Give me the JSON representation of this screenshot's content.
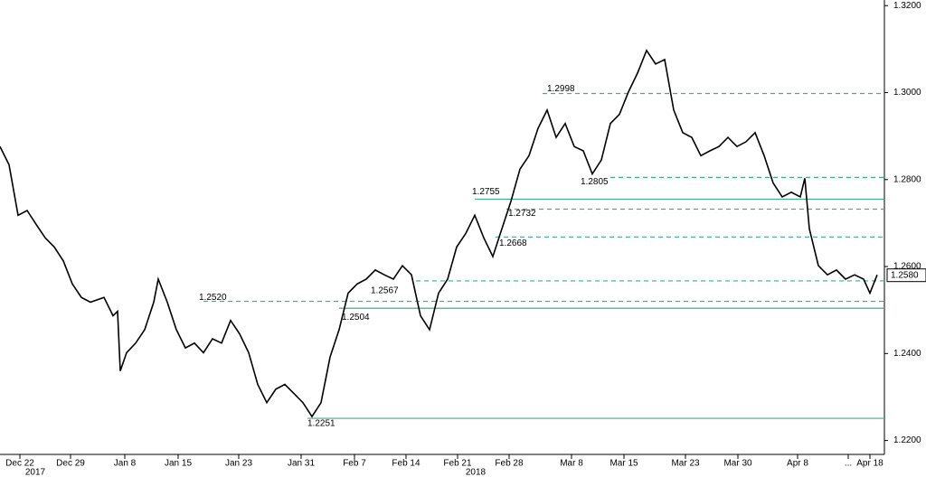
{
  "chart_data": {
    "type": "line",
    "color": "#000000",
    "level_color": "#3fae8c",
    "xlim": [
      0,
      97.5
    ],
    "ylim": [
      1.2168,
      1.3213
    ],
    "yticks": [
      {
        "value": 1.22,
        "label": "1.2200"
      },
      {
        "value": 1.24,
        "label": "1.2400"
      },
      {
        "value": 1.26,
        "label": "1.2600"
      },
      {
        "value": 1.28,
        "label": "1.2800"
      },
      {
        "value": 1.3,
        "label": "1.3000"
      },
      {
        "value": 1.32,
        "label": "1.3200"
      }
    ],
    "xticks": [
      {
        "value": 2.2,
        "label": "Dec 22"
      },
      {
        "value": 7.8,
        "label": "Dec 29"
      },
      {
        "value": 13.8,
        "label": "Jan 8"
      },
      {
        "value": 19.7,
        "label": "Jan 15"
      },
      {
        "value": 26.4,
        "label": "Jan 23"
      },
      {
        "value": 33.3,
        "label": "Jan 31"
      },
      {
        "value": 39.2,
        "label": "Feb 7"
      },
      {
        "value": 44.9,
        "label": "Feb 14"
      },
      {
        "value": 50.6,
        "label": "Feb 21"
      },
      {
        "value": 56.3,
        "label": "Feb 28"
      },
      {
        "value": 63.2,
        "label": "Mar 8"
      },
      {
        "value": 69.0,
        "label": "Mar 15"
      },
      {
        "value": 75.8,
        "label": "Mar 23"
      },
      {
        "value": 81.6,
        "label": "Mar 30"
      },
      {
        "value": 88.2,
        "label": "Apr 8"
      },
      {
        "value": 93.8,
        "label": "..."
      },
      {
        "value": 96.2,
        "label": "Apr 18"
      }
    ],
    "year_labels": [
      {
        "value": 3.9,
        "label": "2017"
      },
      {
        "value": 52.6,
        "label": "2018"
      }
    ],
    "levels": [
      {
        "value": 1.2998,
        "label": "1.2998",
        "style": "dashed"
      },
      {
        "value": 1.2805,
        "label": "1.2805",
        "style": "dashed"
      },
      {
        "value": 1.2755,
        "label": "1.2755",
        "style": "solid"
      },
      {
        "value": 1.2732,
        "label": "1.2732",
        "style": "dashed"
      },
      {
        "value": 1.2668,
        "label": "1.2668",
        "style": "dashed"
      },
      {
        "value": 1.2567,
        "label": "1.2567",
        "style": "dashed"
      },
      {
        "value": 1.252,
        "label": "1.2520",
        "style": "dashed"
      },
      {
        "value": 1.2504,
        "label": "1.2504",
        "style": "solid"
      },
      {
        "value": 1.2251,
        "label": "1.2251",
        "style": "solid"
      }
    ],
    "last_price": {
      "value": 1.258,
      "label": "1.2580"
    },
    "series": [
      {
        "x": [
          0,
          1,
          2,
          3,
          4,
          5,
          6,
          7,
          8,
          9,
          10,
          11.5,
          12.5,
          13,
          13.3,
          14,
          15,
          16,
          17,
          17.5,
          18.5,
          19.5,
          20.5,
          21.5,
          22.5,
          23.5,
          24.5,
          25.5,
          26.5,
          27.5,
          28.5,
          29.5,
          30.5,
          31.5,
          32.5,
          33.5,
          34.5,
          35.5,
          36.5,
          37.5,
          38.5,
          39.5,
          40.5,
          41.5,
          42.5,
          43.5,
          44.5,
          45.5,
          46.5,
          47.5,
          48.5,
          49.5,
          50.5,
          51.5,
          52.5,
          53.5,
          54.5,
          55.5,
          56.5,
          57.5,
          58.5,
          59.5,
          60.5,
          61.5,
          62.5,
          63.5,
          64.5,
          65.5,
          66.5,
          67.5,
          68.5,
          69.5,
          70.5,
          71.5,
          72.5,
          73.5,
          74.5,
          75.5,
          76.5,
          77.5,
          78.5,
          79.5,
          80.5,
          81.5,
          82.5,
          83.5,
          84.5,
          85.5,
          86.5,
          87.5,
          88.5,
          89,
          89.5,
          90.5,
          91.5,
          92.5,
          93.5,
          94.5,
          95.5,
          96.2,
          97
        ],
        "values": [
          1.2876,
          1.2834,
          1.2718,
          1.2729,
          1.2697,
          1.2666,
          1.2645,
          1.2613,
          1.256,
          1.2529,
          1.2518,
          1.2529,
          1.2487,
          1.2497,
          1.236,
          1.2402,
          1.2424,
          1.2455,
          1.2518,
          1.2571,
          1.2518,
          1.2455,
          1.2413,
          1.2424,
          1.2402,
          1.2434,
          1.2424,
          1.2476,
          1.2445,
          1.2402,
          1.2329,
          1.2287,
          1.2318,
          1.2329,
          1.2308,
          1.2287,
          1.2255,
          1.2287,
          1.2392,
          1.2455,
          1.2539,
          1.256,
          1.2571,
          1.2592,
          1.2581,
          1.2571,
          1.2602,
          1.2581,
          1.2487,
          1.2455,
          1.2539,
          1.2571,
          1.2645,
          1.2676,
          1.2718,
          1.2666,
          1.2623,
          1.2687,
          1.275,
          1.2824,
          1.2855,
          1.2918,
          1.296,
          1.2897,
          1.2929,
          1.2876,
          1.2866,
          1.2813,
          1.2845,
          1.2929,
          1.295,
          1.3002,
          1.3045,
          1.3097,
          1.3066,
          1.3076,
          1.296,
          1.2908,
          1.2897,
          1.2855,
          1.2866,
          1.2876,
          1.2897,
          1.2876,
          1.2887,
          1.2908,
          1.2855,
          1.2792,
          1.276,
          1.2771,
          1.276,
          1.2803,
          1.2687,
          1.2602,
          1.2581,
          1.2592,
          1.2571,
          1.2581,
          1.2571,
          1.2539,
          1.2581
        ]
      }
    ]
  }
}
